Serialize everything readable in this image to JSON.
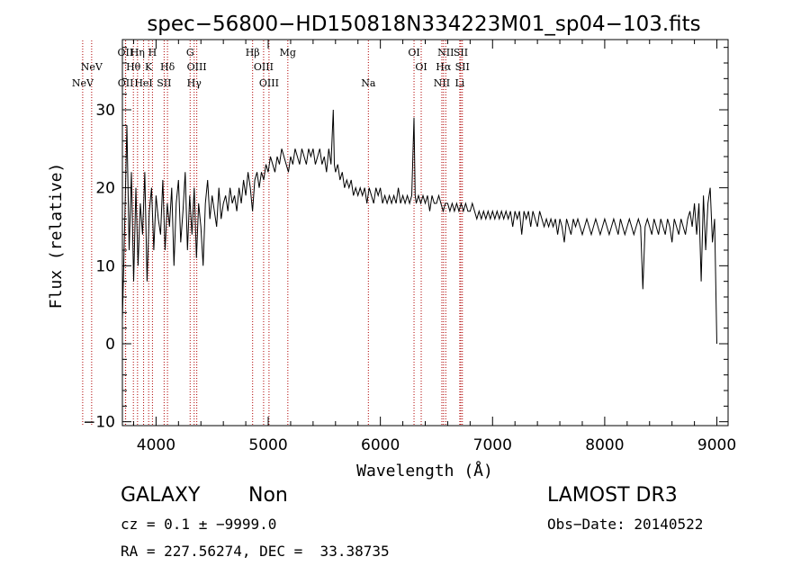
{
  "chart_data": {
    "type": "line",
    "title": "spec−56800−HD150818N334223M01_sp04−103.fits",
    "xlabel": "Wavelength (Å)",
    "ylabel": "Flux (relative)",
    "xlim": [
      3700,
      9100
    ],
    "ylim": [
      -10.5,
      39
    ],
    "xticks": [
      4000,
      5000,
      6000,
      7000,
      8000,
      9000
    ],
    "yticks": [
      -10,
      0,
      10,
      20,
      30
    ],
    "grid": false,
    "series": [
      {
        "values": [
          [
            3700,
            3
          ],
          [
            3720,
            15
          ],
          [
            3740,
            28
          ],
          [
            3760,
            12
          ],
          [
            3780,
            22
          ],
          [
            3800,
            8
          ],
          [
            3820,
            20
          ],
          [
            3840,
            10
          ],
          [
            3860,
            18
          ],
          [
            3880,
            14
          ],
          [
            3900,
            22
          ],
          [
            3920,
            8
          ],
          [
            3940,
            17
          ],
          [
            3960,
            20
          ],
          [
            3980,
            12
          ],
          [
            4000,
            19
          ],
          [
            4020,
            16
          ],
          [
            4040,
            14
          ],
          [
            4060,
            21
          ],
          [
            4080,
            12
          ],
          [
            4100,
            18
          ],
          [
            4120,
            15
          ],
          [
            4140,
            20
          ],
          [
            4160,
            10
          ],
          [
            4180,
            18
          ],
          [
            4200,
            21
          ],
          [
            4220,
            13
          ],
          [
            4240,
            17
          ],
          [
            4260,
            22
          ],
          [
            4280,
            12
          ],
          [
            4300,
            19
          ],
          [
            4320,
            14
          ],
          [
            4340,
            20
          ],
          [
            4360,
            11
          ],
          [
            4380,
            18
          ],
          [
            4400,
            15
          ],
          [
            4420,
            10
          ],
          [
            4440,
            18
          ],
          [
            4460,
            21
          ],
          [
            4480,
            16
          ],
          [
            4500,
            19
          ],
          [
            4520,
            17
          ],
          [
            4540,
            15
          ],
          [
            4560,
            20
          ],
          [
            4580,
            16
          ],
          [
            4600,
            18
          ],
          [
            4620,
            19
          ],
          [
            4640,
            17
          ],
          [
            4660,
            20
          ],
          [
            4680,
            18
          ],
          [
            4700,
            19
          ],
          [
            4720,
            17
          ],
          [
            4740,
            20
          ],
          [
            4760,
            18
          ],
          [
            4780,
            21
          ],
          [
            4800,
            19
          ],
          [
            4820,
            22
          ],
          [
            4840,
            20
          ],
          [
            4860,
            17
          ],
          [
            4880,
            21
          ],
          [
            4900,
            22
          ],
          [
            4920,
            20
          ],
          [
            4940,
            22
          ],
          [
            4960,
            21
          ],
          [
            4980,
            23
          ],
          [
            5000,
            22
          ],
          [
            5020,
            24
          ],
          [
            5040,
            23
          ],
          [
            5060,
            22
          ],
          [
            5080,
            24
          ],
          [
            5100,
            23
          ],
          [
            5120,
            25
          ],
          [
            5140,
            24
          ],
          [
            5160,
            23
          ],
          [
            5180,
            22
          ],
          [
            5200,
            24
          ],
          [
            5220,
            23
          ],
          [
            5240,
            25
          ],
          [
            5260,
            24
          ],
          [
            5280,
            23
          ],
          [
            5300,
            25
          ],
          [
            5320,
            24
          ],
          [
            5340,
            23
          ],
          [
            5360,
            25
          ],
          [
            5380,
            24
          ],
          [
            5400,
            25
          ],
          [
            5420,
            23
          ],
          [
            5440,
            24
          ],
          [
            5460,
            25
          ],
          [
            5480,
            23
          ],
          [
            5500,
            24
          ],
          [
            5520,
            22
          ],
          [
            5540,
            25
          ],
          [
            5560,
            23
          ],
          [
            5580,
            30
          ],
          [
            5590,
            23
          ],
          [
            5600,
            22
          ],
          [
            5620,
            23
          ],
          [
            5640,
            21
          ],
          [
            5660,
            22
          ],
          [
            5680,
            20
          ],
          [
            5700,
            21
          ],
          [
            5720,
            20
          ],
          [
            5740,
            21
          ],
          [
            5760,
            19
          ],
          [
            5780,
            20
          ],
          [
            5800,
            19
          ],
          [
            5820,
            20
          ],
          [
            5840,
            19
          ],
          [
            5860,
            20
          ],
          [
            5880,
            18
          ],
          [
            5900,
            20
          ],
          [
            5920,
            19
          ],
          [
            5940,
            18
          ],
          [
            5960,
            20
          ],
          [
            5980,
            19
          ],
          [
            6000,
            20
          ],
          [
            6020,
            18
          ],
          [
            6040,
            19
          ],
          [
            6060,
            18
          ],
          [
            6080,
            19
          ],
          [
            6100,
            18
          ],
          [
            6120,
            19
          ],
          [
            6140,
            18
          ],
          [
            6160,
            20
          ],
          [
            6180,
            18
          ],
          [
            6200,
            19
          ],
          [
            6220,
            18
          ],
          [
            6240,
            19
          ],
          [
            6260,
            18
          ],
          [
            6280,
            19
          ],
          [
            6300,
            29
          ],
          [
            6310,
            19
          ],
          [
            6320,
            18
          ],
          [
            6340,
            19
          ],
          [
            6360,
            18
          ],
          [
            6380,
            19
          ],
          [
            6400,
            18
          ],
          [
            6420,
            19
          ],
          [
            6440,
            17
          ],
          [
            6460,
            19
          ],
          [
            6480,
            18
          ],
          [
            6500,
            18
          ],
          [
            6520,
            19
          ],
          [
            6540,
            18
          ],
          [
            6560,
            17
          ],
          [
            6580,
            18
          ],
          [
            6600,
            18
          ],
          [
            6620,
            17
          ],
          [
            6640,
            18
          ],
          [
            6660,
            17
          ],
          [
            6680,
            18
          ],
          [
            6700,
            17
          ],
          [
            6720,
            18
          ],
          [
            6740,
            17
          ],
          [
            6760,
            18
          ],
          [
            6780,
            17
          ],
          [
            6800,
            17
          ],
          [
            6820,
            18
          ],
          [
            6840,
            17
          ],
          [
            6860,
            16
          ],
          [
            6880,
            17
          ],
          [
            6900,
            16
          ],
          [
            6920,
            17
          ],
          [
            6940,
            16
          ],
          [
            6960,
            17
          ],
          [
            6980,
            16
          ],
          [
            7000,
            17
          ],
          [
            7020,
            16
          ],
          [
            7040,
            17
          ],
          [
            7060,
            16
          ],
          [
            7080,
            17
          ],
          [
            7100,
            16
          ],
          [
            7120,
            17
          ],
          [
            7140,
            16
          ],
          [
            7160,
            17
          ],
          [
            7180,
            15
          ],
          [
            7200,
            17
          ],
          [
            7220,
            16
          ],
          [
            7240,
            17
          ],
          [
            7260,
            14
          ],
          [
            7280,
            17
          ],
          [
            7300,
            16
          ],
          [
            7320,
            17
          ],
          [
            7340,
            15
          ],
          [
            7360,
            17
          ],
          [
            7380,
            16
          ],
          [
            7400,
            15
          ],
          [
            7420,
            17
          ],
          [
            7440,
            16
          ],
          [
            7460,
            15
          ],
          [
            7480,
            16
          ],
          [
            7500,
            15
          ],
          [
            7520,
            16
          ],
          [
            7540,
            15
          ],
          [
            7560,
            16
          ],
          [
            7580,
            14
          ],
          [
            7600,
            16
          ],
          [
            7620,
            15
          ],
          [
            7640,
            13
          ],
          [
            7660,
            16
          ],
          [
            7680,
            15
          ],
          [
            7700,
            14
          ],
          [
            7720,
            16
          ],
          [
            7740,
            15
          ],
          [
            7760,
            16
          ],
          [
            7780,
            15
          ],
          [
            7800,
            14
          ],
          [
            7820,
            15
          ],
          [
            7840,
            16
          ],
          [
            7860,
            15
          ],
          [
            7880,
            14
          ],
          [
            7900,
            15
          ],
          [
            7920,
            16
          ],
          [
            7940,
            15
          ],
          [
            7960,
            14
          ],
          [
            7980,
            15
          ],
          [
            8000,
            16
          ],
          [
            8020,
            15
          ],
          [
            8040,
            14
          ],
          [
            8060,
            15
          ],
          [
            8080,
            16
          ],
          [
            8100,
            15
          ],
          [
            8120,
            14
          ],
          [
            8140,
            16
          ],
          [
            8160,
            15
          ],
          [
            8180,
            14
          ],
          [
            8200,
            15
          ],
          [
            8220,
            16
          ],
          [
            8240,
            15
          ],
          [
            8260,
            14
          ],
          [
            8280,
            15
          ],
          [
            8300,
            16
          ],
          [
            8320,
            15
          ],
          [
            8340,
            7
          ],
          [
            8360,
            15
          ],
          [
            8380,
            16
          ],
          [
            8400,
            15
          ],
          [
            8420,
            14
          ],
          [
            8440,
            16
          ],
          [
            8460,
            15
          ],
          [
            8480,
            14
          ],
          [
            8500,
            16
          ],
          [
            8520,
            15
          ],
          [
            8540,
            14
          ],
          [
            8560,
            16
          ],
          [
            8580,
            15
          ],
          [
            8600,
            13
          ],
          [
            8620,
            16
          ],
          [
            8640,
            15
          ],
          [
            8660,
            14
          ],
          [
            8680,
            16
          ],
          [
            8700,
            15
          ],
          [
            8720,
            14
          ],
          [
            8740,
            16
          ],
          [
            8760,
            17
          ],
          [
            8780,
            15
          ],
          [
            8800,
            18
          ],
          [
            8820,
            14
          ],
          [
            8840,
            18
          ],
          [
            8860,
            8
          ],
          [
            8880,
            19
          ],
          [
            8900,
            12
          ],
          [
            8920,
            18
          ],
          [
            8940,
            20
          ],
          [
            8960,
            13
          ],
          [
            8980,
            16
          ],
          [
            9000,
            0
          ]
        ]
      }
    ],
    "lines": [
      {
        "label": "NeV",
        "x": 3426,
        "row": 1
      },
      {
        "label": "NeV",
        "x": 3346,
        "row": 2
      },
      {
        "label": "OII",
        "x": 3727,
        "row": 0
      },
      {
        "label": "OII",
        "x": 3729,
        "row": 2
      },
      {
        "label": "Hη",
        "x": 3835,
        "row": 0
      },
      {
        "label": "Hθ",
        "x": 3798,
        "row": 1
      },
      {
        "label": "HeI",
        "x": 3889,
        "row": 2
      },
      {
        "label": "H",
        "x": 3968,
        "row": 0
      },
      {
        "label": "K",
        "x": 3934,
        "row": 1
      },
      {
        "label": "Hδ",
        "x": 4102,
        "row": 1
      },
      {
        "label": "SII",
        "x": 4072,
        "row": 2
      },
      {
        "label": "G",
        "x": 4304,
        "row": 0
      },
      {
        "label": "OIII",
        "x": 4363,
        "row": 1
      },
      {
        "label": "Hγ",
        "x": 4340,
        "row": 2
      },
      {
        "label": "Hβ",
        "x": 4861,
        "row": 0
      },
      {
        "label": "OIII",
        "x": 4959,
        "row": 1
      },
      {
        "label": "OIII",
        "x": 5007,
        "row": 2
      },
      {
        "label": "Mg",
        "x": 5175,
        "row": 0
      },
      {
        "label": "Na",
        "x": 5893,
        "row": 2
      },
      {
        "label": "OI",
        "x": 6300,
        "row": 0
      },
      {
        "label": "OI",
        "x": 6364,
        "row": 1
      },
      {
        "label": "NII",
        "x": 6583,
        "row": 0
      },
      {
        "label": "Hα",
        "x": 6563,
        "row": 1
      },
      {
        "label": "NII",
        "x": 6548,
        "row": 2
      },
      {
        "label": "SII",
        "x": 6717,
        "row": 0
      },
      {
        "label": "SII",
        "x": 6731,
        "row": 1
      },
      {
        "label": "Li",
        "x": 6708,
        "row": 2
      }
    ]
  },
  "info": {
    "class": "GALAXY",
    "subclass": "Non",
    "survey": "LAMOST DR3",
    "cz": "cz = 0.1 ± −9999.0",
    "obs_date": "Obs−Date: 20140522",
    "coords": "RA = 227.56274, DEC =  33.38735"
  }
}
